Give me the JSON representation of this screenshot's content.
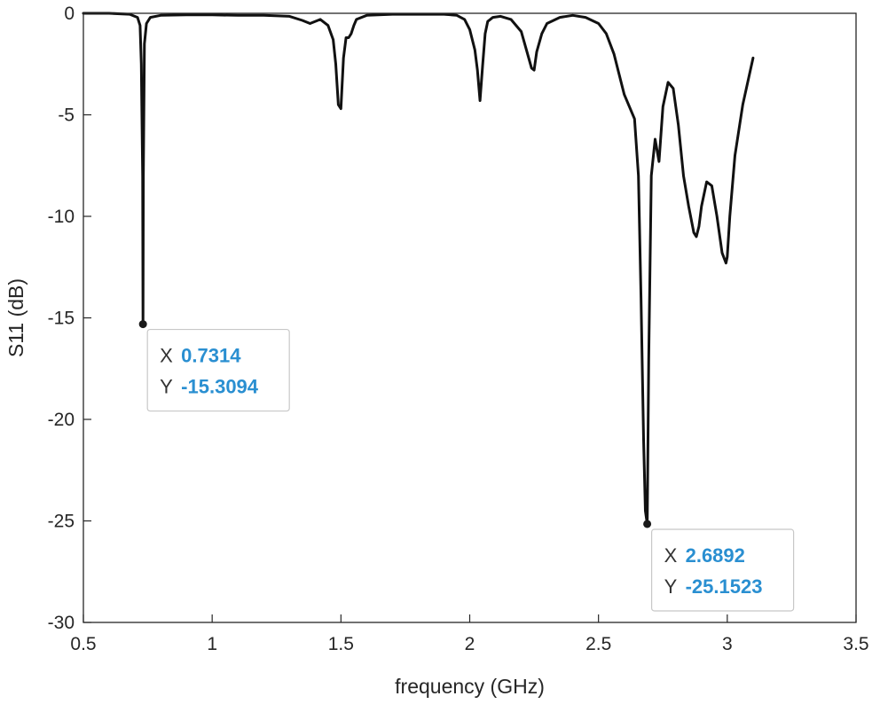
{
  "chart_data": {
    "type": "line",
    "title": "",
    "xlabel": "frequency (GHz)",
    "ylabel": "S11 (dB)",
    "xlim": [
      0.5,
      3.5
    ],
    "ylim": [
      -30,
      0
    ],
    "xticks": [
      "0.5",
      "1",
      "1.5",
      "2",
      "2.5",
      "3",
      "3.5"
    ],
    "yticks": [
      "0",
      "-5",
      "-10",
      "-15",
      "-20",
      "-25",
      "-30"
    ],
    "grid": false,
    "legend": "none",
    "line_color": "#111111",
    "series": [
      {
        "x": [
          0.5,
          0.6,
          0.68,
          0.71,
          0.72,
          0.725,
          0.73,
          0.7314,
          0.733,
          0.737,
          0.745,
          0.76,
          0.8,
          0.9,
          1.0,
          1.1,
          1.2,
          1.3,
          1.35,
          1.38,
          1.42,
          1.45,
          1.47,
          1.48,
          1.49,
          1.5,
          1.51,
          1.52,
          1.53,
          1.54,
          1.55,
          1.56,
          1.6,
          1.7,
          1.8,
          1.9,
          1.95,
          1.98,
          2.0,
          2.02,
          2.03,
          2.04,
          2.05,
          2.06,
          2.07,
          2.09,
          2.12,
          2.16,
          2.2,
          2.22,
          2.24,
          2.25,
          2.26,
          2.28,
          2.3,
          2.35,
          2.4,
          2.45,
          2.5,
          2.53,
          2.56,
          2.58,
          2.6,
          2.62,
          2.64,
          2.655,
          2.665,
          2.675,
          2.682,
          2.6892,
          2.695,
          2.705,
          2.72,
          2.735,
          2.75,
          2.77,
          2.79,
          2.81,
          2.83,
          2.85,
          2.87,
          2.88,
          2.89,
          2.9,
          2.92,
          2.94,
          2.96,
          2.98,
          2.995,
          3.0,
          3.01,
          3.03,
          3.06,
          3.1
        ],
        "y": [
          0,
          0,
          -0.05,
          -0.2,
          -0.6,
          -2.5,
          -8.0,
          -15.3094,
          -8.0,
          -1.5,
          -0.5,
          -0.2,
          -0.1,
          -0.08,
          -0.08,
          -0.1,
          -0.1,
          -0.15,
          -0.35,
          -0.5,
          -0.3,
          -0.6,
          -1.3,
          -2.5,
          -4.5,
          -4.7,
          -2.2,
          -1.2,
          -1.2,
          -1.0,
          -0.6,
          -0.3,
          -0.1,
          -0.05,
          -0.05,
          -0.05,
          -0.1,
          -0.3,
          -0.8,
          -1.8,
          -2.8,
          -4.3,
          -2.6,
          -1.0,
          -0.4,
          -0.2,
          -0.15,
          -0.3,
          -0.9,
          -1.8,
          -2.7,
          -2.8,
          -1.9,
          -1.0,
          -0.5,
          -0.2,
          -0.1,
          -0.2,
          -0.5,
          -1.0,
          -2.0,
          -3.0,
          -4.0,
          -4.6,
          -5.2,
          -8.0,
          -14.0,
          -21.0,
          -24.5,
          -25.1523,
          -17.0,
          -8.0,
          -6.2,
          -7.3,
          -4.6,
          -3.4,
          -3.7,
          -5.5,
          -8.0,
          -9.5,
          -10.8,
          -11.0,
          -10.5,
          -9.5,
          -8.3,
          -8.5,
          -10.0,
          -11.8,
          -12.3,
          -12.0,
          -10.0,
          -7.0,
          -4.5,
          -2.2
        ]
      }
    ],
    "annotations": [
      {
        "x_label": "X",
        "y_label": "Y",
        "x": 0.7314,
        "y": -15.3094,
        "x_text": "0.7314",
        "y_text": "-15.3094"
      },
      {
        "x_label": "X",
        "y_label": "Y",
        "x": 2.6892,
        "y": -25.1523,
        "x_text": "2.6892",
        "y_text": "-25.1523"
      }
    ],
    "annotation_value_color": "#2a8fd1"
  }
}
